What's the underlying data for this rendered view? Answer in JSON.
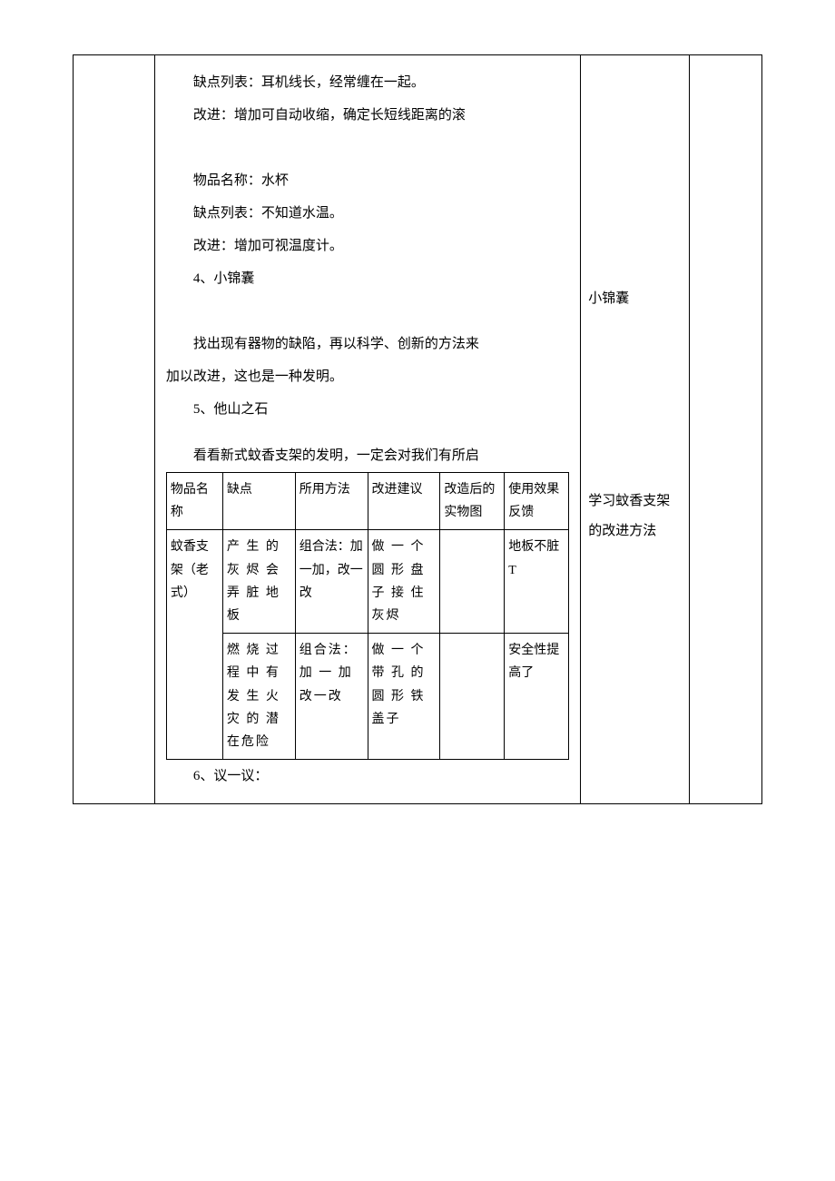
{
  "body": {
    "p1": "缺点列表：耳机线长，经常缠在一起。",
    "p2": "改进：增加可自动收缩，确定长短线距离的滚",
    "p3": "物品名称：水杯",
    "p4": "缺点列表：不知道水温。",
    "p5": "改进：增加可视温度计。",
    "s4": "4、小锦囊",
    "p6a": "找出现有器物的缺陷，再以科学、创新的方法来",
    "p6b": "加以改进，这也是一种发明。",
    "s5": "5、他山之石",
    "p7": "看看新式蚊香支架的发明，一定会对我们有所启",
    "s6": "6、议一议："
  },
  "inner": {
    "h1": "物品名称",
    "h2": "缺点",
    "h3": "所用方法",
    "h4": "改进建议",
    "h5": "改造后的实物图",
    "h6": "使用效果反馈",
    "r1c1": "蚊香支架（老式）",
    "r1c2": "产 生 的灰 烬 会弄 脏 地板",
    "r1c3": "组合法：加一加，改一改",
    "r1c4": "做 一 个圆 形 盘子 接 住灰烬",
    "r1c5": "",
    "r1c6": "地板不脏T",
    "r2c2": "燃 烧 过程 中 有发 生 火灾 的 潜在危险",
    "r2c3": "组合法：加 一 加改一改",
    "r2c4": "做 一 个带 孔 的圆 形 铁盖子",
    "r2c5": "",
    "r2c6": "安全性提高了"
  },
  "side": {
    "n1": "小锦囊",
    "n2": "学习蚊香支架的改进方法"
  },
  "colors": {
    "text": "#000000",
    "border": "#000000",
    "bg": "#ffffff"
  }
}
